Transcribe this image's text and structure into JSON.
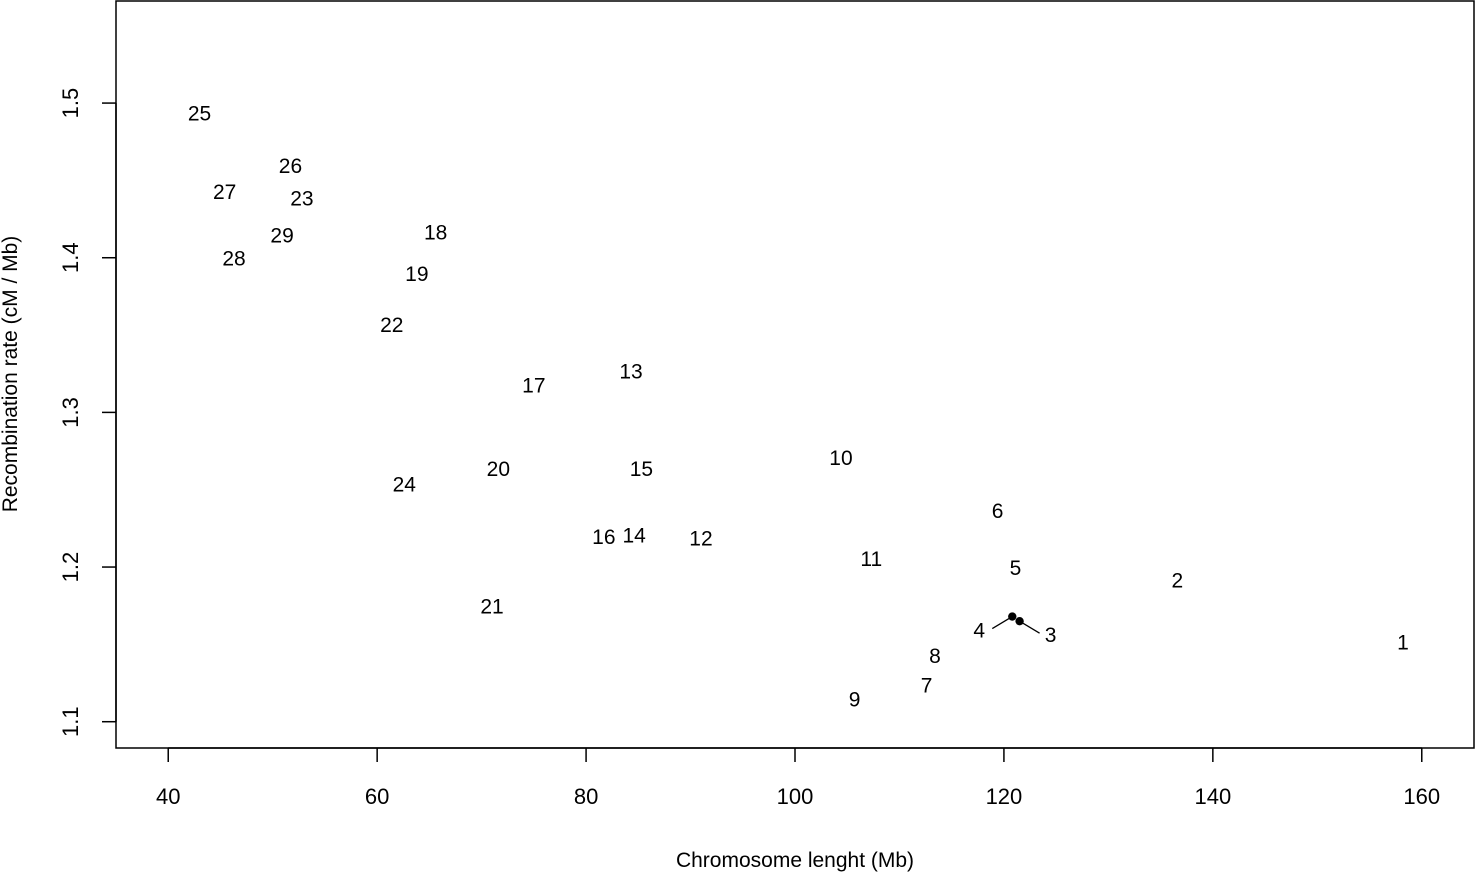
{
  "chart_data": {
    "type": "scatter",
    "title": "",
    "xlabel": "Chromosome lenght (Mb)",
    "ylabel": "Recombination rate (cM / Mb)",
    "xlim": [
      35,
      165
    ],
    "ylim": [
      1.083,
      1.566
    ],
    "xticks": [
      40,
      60,
      80,
      100,
      120,
      140,
      160
    ],
    "yticks": [
      1.1,
      1.2,
      1.3,
      1.4,
      1.5
    ],
    "xtick_labels": [
      "40",
      "60",
      "80",
      "100",
      "120",
      "140",
      "160"
    ],
    "ytick_labels": [
      "1.1",
      "1.2",
      "1.3",
      "1.4",
      "1.5"
    ],
    "grid": false,
    "points": [
      {
        "label": "1",
        "x": 158.2,
        "y": 1.152
      },
      {
        "label": "2",
        "x": 136.6,
        "y": 1.192
      },
      {
        "label": "3",
        "x": 121.5,
        "y": 1.165
      },
      {
        "label": "4",
        "x": 120.8,
        "y": 1.168
      },
      {
        "label": "5",
        "x": 121.1,
        "y": 1.2
      },
      {
        "label": "6",
        "x": 119.4,
        "y": 1.237
      },
      {
        "label": "7",
        "x": 112.6,
        "y": 1.124
      },
      {
        "label": "8",
        "x": 113.4,
        "y": 1.143
      },
      {
        "label": "9",
        "x": 105.7,
        "y": 1.115
      },
      {
        "label": "10",
        "x": 104.4,
        "y": 1.271
      },
      {
        "label": "11",
        "x": 107.3,
        "y": 1.206
      },
      {
        "label": "12",
        "x": 91.0,
        "y": 1.219
      },
      {
        "label": "13",
        "x": 84.3,
        "y": 1.327
      },
      {
        "label": "14",
        "x": 84.6,
        "y": 1.221
      },
      {
        "label": "15",
        "x": 85.3,
        "y": 1.264
      },
      {
        "label": "16",
        "x": 81.7,
        "y": 1.22
      },
      {
        "label": "17",
        "x": 75.0,
        "y": 1.318
      },
      {
        "label": "18",
        "x": 65.6,
        "y": 1.417
      },
      {
        "label": "19",
        "x": 63.8,
        "y": 1.39
      },
      {
        "label": "20",
        "x": 71.6,
        "y": 1.264
      },
      {
        "label": "21",
        "x": 71.0,
        "y": 1.175
      },
      {
        "label": "22",
        "x": 61.4,
        "y": 1.357
      },
      {
        "label": "23",
        "x": 52.8,
        "y": 1.439
      },
      {
        "label": "24",
        "x": 62.6,
        "y": 1.254
      },
      {
        "label": "25",
        "x": 43.0,
        "y": 1.494
      },
      {
        "label": "26",
        "x": 51.7,
        "y": 1.46
      },
      {
        "label": "27",
        "x": 45.4,
        "y": 1.443
      },
      {
        "label": "28",
        "x": 46.3,
        "y": 1.4
      },
      {
        "label": "29",
        "x": 50.9,
        "y": 1.415
      }
    ],
    "offset_points": [
      {
        "label": "4",
        "x": 120.8,
        "y": 1.168
      },
      {
        "label": "3",
        "x": 121.5,
        "y": 1.165
      }
    ]
  }
}
